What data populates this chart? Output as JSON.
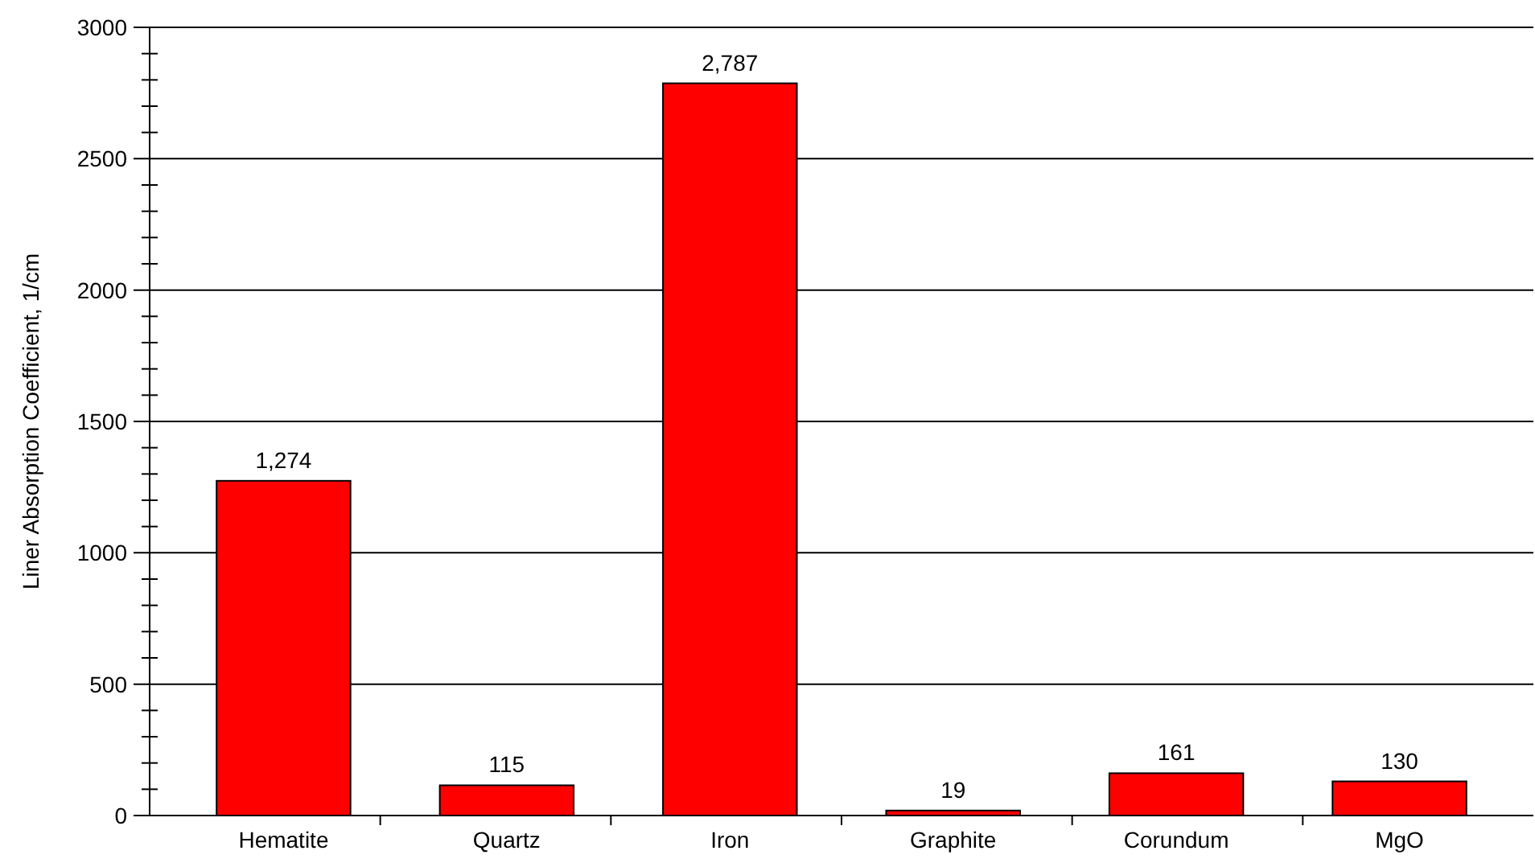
{
  "chart_data": {
    "type": "bar",
    "ylabel": "Liner Absorption Coefficient, 1/cm",
    "categories": [
      "Hematite",
      "Quartz",
      "Iron",
      "Graphite",
      "Corundum",
      "MgO"
    ],
    "values": [
      1274,
      115,
      2787,
      19,
      161,
      130
    ],
    "value_labels": [
      "1,274",
      "115",
      "2,787",
      "19",
      "161",
      "130"
    ],
    "color": "#ff0000",
    "ylim": [
      0,
      3000
    ],
    "yticks": [
      0,
      {
        "value": 100,
        "label": null
      },
      {
        "value": 200,
        "label": null
      },
      {
        "value": 300,
        "label": null
      },
      {
        "value": 400,
        "label": null
      },
      500,
      {
        "value": 600,
        "label": null
      },
      {
        "value": 700,
        "label": null
      },
      {
        "value": 800,
        "label": null
      },
      {
        "value": 900,
        "label": null
      },
      1000,
      {
        "value": 1100,
        "label": null
      },
      {
        "value": 1200,
        "label": null
      },
      {
        "value": 1300,
        "label": null
      },
      {
        "value": 1400,
        "label": null
      },
      1500,
      {
        "value": 1600,
        "label": null
      },
      {
        "value": 1700,
        "label": null
      },
      {
        "value": 1800,
        "label": null
      },
      {
        "value": 1900,
        "label": null
      },
      2000,
      {
        "value": 2100,
        "label": null
      },
      {
        "value": 2200,
        "label": null
      },
      {
        "value": 2300,
        "label": null
      },
      {
        "value": 2400,
        "label": null
      },
      2500,
      {
        "value": 2600,
        "label": null
      },
      {
        "value": 2700,
        "label": null
      },
      {
        "value": 2800,
        "label": null
      },
      {
        "value": 2900,
        "label": null
      },
      3000
    ],
    "grid": "y"
  }
}
